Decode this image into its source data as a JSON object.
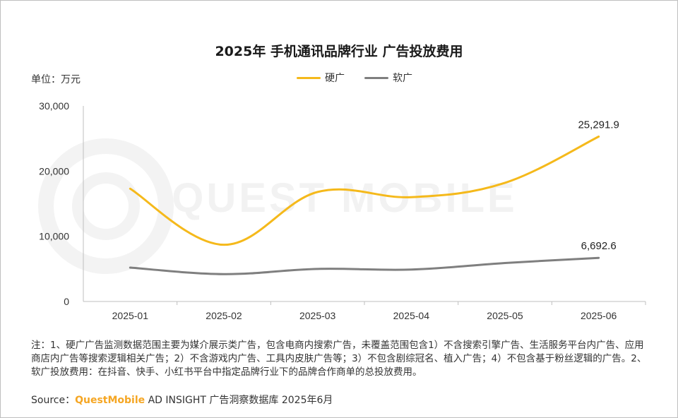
{
  "chart_data": {
    "type": "line",
    "title": "2025年 手机通讯品牌行业 广告投放费用",
    "unit_label": "单位：万元",
    "categories": [
      "2025-01",
      "2025-02",
      "2025-03",
      "2025-04",
      "2025-05",
      "2025-06"
    ],
    "series": [
      {
        "name": "硬广",
        "color": "#f5b91b",
        "values": [
          17300,
          8700,
          16800,
          16000,
          18200,
          25291.9
        ]
      },
      {
        "name": "软广",
        "color": "#7f7f7f",
        "values": [
          5200,
          4200,
          5000,
          4900,
          5900,
          6692.6
        ]
      }
    ],
    "data_labels": [
      "25,291.9",
      "6,692.6"
    ],
    "y_ticks": [
      "0",
      "10,000",
      "20,000",
      "30,000"
    ],
    "ylim": [
      0,
      30000
    ]
  },
  "watermark": "QUEST MOBILE",
  "note": "注：1、硬广广告监测数据范围主要为媒介展示类广告，包含电商内搜索广告，未覆盖范围包含1）不含搜索引擎广告、生活服务平台内广告、应用商店内广告等搜索逻辑相关广告；2）不含游戏内广告、工具内皮肤广告等；3）不包含剧综冠名、植入广告；4）不包含基于粉丝逻辑的广告。2、软广投放费用：在抖音、快手、小红书平台中指定品牌行业下的品牌合作商单的总投放费用。",
  "source": {
    "prefix": "Source：",
    "brand": "QuestMobile",
    "rest": " AD INSIGHT 广告洞察数据库 2025年6月"
  }
}
